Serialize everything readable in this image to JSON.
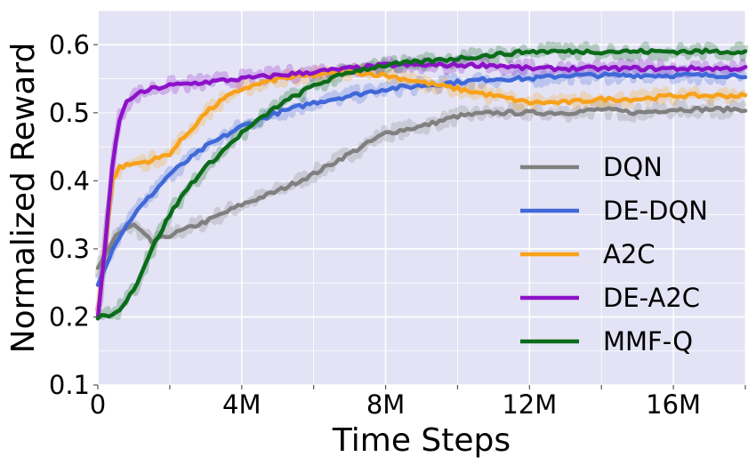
{
  "chart_data": {
    "type": "line",
    "xlabel": "Time Steps",
    "ylabel": "Normalized Reward",
    "xlim": [
      0,
      18
    ],
    "ylim": [
      0.1,
      0.65
    ],
    "x_unit": "M",
    "xticks": [
      {
        "value": 0,
        "label": "0"
      },
      {
        "value": 4,
        "label": "4M"
      },
      {
        "value": 8,
        "label": "8M"
      },
      {
        "value": 12,
        "label": "12M"
      },
      {
        "value": 16,
        "label": "16M"
      }
    ],
    "yticks": [
      {
        "value": 0.1,
        "label": "0.1"
      },
      {
        "value": 0.2,
        "label": "0.2"
      },
      {
        "value": 0.3,
        "label": "0.3"
      },
      {
        "value": 0.4,
        "label": "0.4"
      },
      {
        "value": 0.5,
        "label": "0.5"
      },
      {
        "value": 0.6,
        "label": "0.6"
      }
    ],
    "grid": true,
    "background_color": "#e3e3f5",
    "legend_position": "lower-right",
    "series": [
      {
        "name": "DQN",
        "color": "#808080",
        "x": [
          0,
          0.5,
          1,
          1.5,
          2,
          3,
          4,
          5,
          6,
          7,
          8,
          9,
          10,
          11,
          12,
          13,
          14,
          15,
          16,
          17,
          18
        ],
        "y": [
          0.27,
          0.32,
          0.335,
          0.31,
          0.32,
          0.34,
          0.365,
          0.385,
          0.41,
          0.44,
          0.47,
          0.48,
          0.495,
          0.5,
          0.5,
          0.5,
          0.505,
          0.5,
          0.505,
          0.505,
          0.505
        ]
      },
      {
        "name": "DE-DQN",
        "color": "#3f68d8",
        "x": [
          0,
          0.5,
          1,
          2,
          3,
          4,
          5,
          6,
          7,
          8,
          9,
          10,
          11,
          12,
          13,
          14,
          15,
          16,
          17,
          18
        ],
        "y": [
          0.25,
          0.31,
          0.35,
          0.41,
          0.45,
          0.48,
          0.5,
          0.515,
          0.525,
          0.535,
          0.54,
          0.545,
          0.55,
          0.55,
          0.555,
          0.555,
          0.555,
          0.555,
          0.555,
          0.555
        ]
      },
      {
        "name": "A2C",
        "color": "#f7a21b",
        "x": [
          0,
          0.2,
          0.4,
          0.6,
          1,
          1.5,
          2,
          2.5,
          3,
          3.5,
          4,
          5,
          6,
          7,
          8,
          9,
          10,
          11,
          12,
          13,
          14,
          15,
          16,
          17,
          18
        ],
        "y": [
          0.2,
          0.3,
          0.4,
          0.42,
          0.425,
          0.43,
          0.44,
          0.47,
          0.5,
          0.52,
          0.535,
          0.55,
          0.555,
          0.56,
          0.555,
          0.545,
          0.535,
          0.525,
          0.515,
          0.515,
          0.52,
          0.52,
          0.525,
          0.525,
          0.525
        ]
      },
      {
        "name": "DE-A2C",
        "color": "#8c12c8",
        "x": [
          0,
          0.2,
          0.4,
          0.6,
          0.8,
          1,
          1.5,
          2,
          3,
          4,
          5,
          6,
          7,
          8,
          9,
          10,
          11,
          12,
          13,
          14,
          15,
          16,
          17,
          18
        ],
        "y": [
          0.2,
          0.3,
          0.42,
          0.49,
          0.515,
          0.525,
          0.535,
          0.54,
          0.545,
          0.55,
          0.555,
          0.56,
          0.565,
          0.57,
          0.57,
          0.57,
          0.57,
          0.565,
          0.565,
          0.565,
          0.565,
          0.565,
          0.565,
          0.565
        ]
      },
      {
        "name": "MMF-Q",
        "color": "#0b6b1a",
        "x": [
          0,
          0.5,
          1,
          1.5,
          2,
          2.5,
          3,
          4,
          5,
          6,
          7,
          8,
          9,
          10,
          11,
          12,
          13,
          14,
          15,
          16,
          17,
          18
        ],
        "y": [
          0.2,
          0.205,
          0.24,
          0.3,
          0.35,
          0.39,
          0.42,
          0.47,
          0.51,
          0.54,
          0.56,
          0.57,
          0.575,
          0.58,
          0.585,
          0.59,
          0.59,
          0.59,
          0.59,
          0.59,
          0.59,
          0.59
        ]
      }
    ]
  }
}
